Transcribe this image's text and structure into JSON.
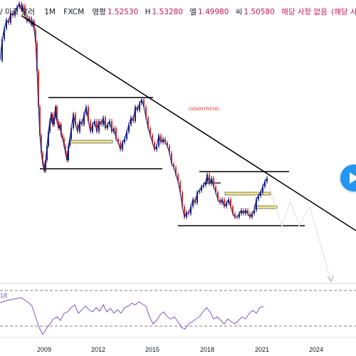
{
  "header": {
    "pair": "/ 미국 달러",
    "interval": "1M",
    "source": "FXCM",
    "open_label": "영평",
    "open": "1.52530",
    "high_label": "H",
    "high": "1.53280",
    "low_label": "엘",
    "low": "1.49980",
    "close_label": "씨",
    "close": "1.50580",
    "na1": "해당 사항 없음",
    "na2": "(해당 사항 없음"
  },
  "annotation": "DOWNTREND",
  "rsi_value": "18",
  "x_axis": [
    "2009",
    "2012",
    "2015",
    "2018",
    "2021",
    "2024"
  ],
  "colors": {
    "up": "#1a237e",
    "down": "#d32f2f",
    "rsi": "#7e57c2",
    "trend": "#000000",
    "zone": "#f0e68c"
  },
  "price_path": [
    [
      0,
      85
    ],
    [
      3,
      55
    ],
    [
      6,
      40
    ],
    [
      9,
      28
    ],
    [
      12,
      32
    ],
    [
      15,
      18
    ],
    [
      18,
      22
    ],
    [
      21,
      15
    ],
    [
      24,
      10
    ],
    [
      27,
      5
    ],
    [
      30,
      14
    ],
    [
      32,
      8
    ],
    [
      35,
      22
    ],
    [
      38,
      30
    ],
    [
      41,
      25
    ],
    [
      44,
      35
    ],
    [
      46,
      30
    ],
    [
      48,
      42
    ],
    [
      50,
      60
    ],
    [
      52,
      100
    ],
    [
      54,
      150
    ],
    [
      56,
      190
    ],
    [
      58,
      215
    ],
    [
      60,
      230
    ],
    [
      62,
      240
    ],
    [
      64,
      225
    ],
    [
      66,
      205
    ],
    [
      68,
      185
    ],
    [
      70,
      170
    ],
    [
      72,
      160
    ],
    [
      74,
      175
    ],
    [
      76,
      165
    ],
    [
      78,
      150
    ],
    [
      80,
      170
    ],
    [
      82,
      180
    ],
    [
      84,
      175
    ],
    [
      86,
      190
    ],
    [
      88,
      195
    ],
    [
      90,
      205
    ],
    [
      92,
      215
    ],
    [
      94,
      225
    ],
    [
      96,
      205
    ],
    [
      98,
      195
    ],
    [
      100,
      180
    ],
    [
      103,
      160
    ],
    [
      106,
      175
    ],
    [
      109,
      185
    ],
    [
      112,
      170
    ],
    [
      115,
      175
    ],
    [
      118,
      160
    ],
    [
      121,
      150
    ],
    [
      124,
      170
    ],
    [
      127,
      185
    ],
    [
      130,
      175
    ],
    [
      133,
      170
    ],
    [
      136,
      185
    ],
    [
      139,
      170
    ],
    [
      142,
      175
    ],
    [
      145,
      165
    ],
    [
      148,
      180
    ],
    [
      151,
      175
    ],
    [
      154,
      170
    ],
    [
      157,
      185
    ],
    [
      160,
      180
    ],
    [
      163,
      195
    ],
    [
      166,
      200
    ],
    [
      169,
      210
    ],
    [
      172,
      200
    ],
    [
      175,
      195
    ],
    [
      178,
      185
    ],
    [
      181,
      175
    ],
    [
      184,
      165
    ],
    [
      187,
      170
    ],
    [
      190,
      150
    ],
    [
      193,
      155
    ],
    [
      196,
      145
    ],
    [
      199,
      140
    ],
    [
      202,
      150
    ],
    [
      205,
      165
    ],
    [
      208,
      180
    ],
    [
      211,
      190
    ],
    [
      214,
      200
    ],
    [
      217,
      210
    ],
    [
      220,
      205
    ],
    [
      223,
      190
    ],
    [
      226,
      200
    ],
    [
      229,
      195
    ],
    [
      232,
      200
    ],
    [
      235,
      205
    ],
    [
      238,
      215
    ],
    [
      241,
      230
    ],
    [
      244,
      235
    ],
    [
      247,
      245
    ],
    [
      250,
      255
    ],
    [
      253,
      270
    ],
    [
      256,
      290
    ],
    [
      259,
      305
    ],
    [
      262,
      298
    ],
    [
      265,
      300
    ],
    [
      268,
      290
    ],
    [
      271,
      280
    ],
    [
      274,
      285
    ],
    [
      277,
      270
    ],
    [
      280,
      268
    ],
    [
      283,
      262
    ],
    [
      286,
      260
    ],
    [
      289,
      255
    ],
    [
      291,
      245
    ],
    [
      294,
      258
    ],
    [
      297,
      250
    ],
    [
      300,
      262
    ],
    [
      303,
      270
    ],
    [
      306,
      280
    ],
    [
      309,
      285
    ],
    [
      312,
      280
    ],
    [
      315,
      290
    ],
    [
      318,
      285
    ],
    [
      321,
      280
    ],
    [
      324,
      290
    ],
    [
      327,
      300
    ],
    [
      330,
      305
    ],
    [
      333,
      305
    ],
    [
      336,
      300
    ],
    [
      339,
      295
    ],
    [
      342,
      300
    ],
    [
      345,
      295
    ],
    [
      348,
      300
    ],
    [
      351,
      305
    ],
    [
      354,
      300
    ],
    [
      357,
      295
    ],
    [
      360,
      280
    ],
    [
      363,
      275
    ],
    [
      366,
      270
    ],
    [
      369,
      262
    ],
    [
      372,
      255
    ],
    [
      375,
      250
    ]
  ],
  "rsi_path": [
    [
      0,
      425
    ],
    [
      10,
      422
    ],
    [
      20,
      420
    ],
    [
      30,
      418
    ],
    [
      40,
      425
    ],
    [
      45,
      430
    ],
    [
      50,
      445
    ],
    [
      55,
      460
    ],
    [
      60,
      470
    ],
    [
      65,
      462
    ],
    [
      70,
      455
    ],
    [
      75,
      448
    ],
    [
      80,
      445
    ],
    [
      85,
      450
    ],
    [
      90,
      440
    ],
    [
      95,
      438
    ],
    [
      100,
      432
    ],
    [
      105,
      428
    ],
    [
      110,
      440
    ],
    [
      115,
      435
    ],
    [
      120,
      430
    ],
    [
      125,
      435
    ],
    [
      130,
      438
    ],
    [
      135,
      432
    ],
    [
      140,
      437
    ],
    [
      145,
      428
    ],
    [
      150,
      438
    ],
    [
      155,
      433
    ],
    [
      160,
      440
    ],
    [
      165,
      435
    ],
    [
      170,
      440
    ],
    [
      175,
      432
    ],
    [
      180,
      430
    ],
    [
      185,
      426
    ],
    [
      190,
      428
    ],
    [
      195,
      424
    ],
    [
      200,
      427
    ],
    [
      205,
      430
    ],
    [
      210,
      445
    ],
    [
      215,
      455
    ],
    [
      220,
      450
    ],
    [
      225,
      442
    ],
    [
      230,
      438
    ],
    [
      235,
      445
    ],
    [
      240,
      448
    ],
    [
      245,
      445
    ],
    [
      250,
      452
    ],
    [
      255,
      460
    ],
    [
      260,
      462
    ],
    [
      265,
      455
    ],
    [
      270,
      452
    ],
    [
      275,
      448
    ],
    [
      280,
      445
    ],
    [
      285,
      438
    ],
    [
      290,
      432
    ],
    [
      295,
      438
    ],
    [
      300,
      448
    ],
    [
      305,
      445
    ],
    [
      310,
      450
    ],
    [
      315,
      455
    ],
    [
      320,
      448
    ],
    [
      325,
      452
    ],
    [
      330,
      455
    ],
    [
      335,
      450
    ],
    [
      340,
      445
    ],
    [
      345,
      448
    ],
    [
      350,
      440
    ],
    [
      355,
      436
    ],
    [
      360,
      440
    ],
    [
      365,
      432
    ],
    [
      370,
      430
    ]
  ]
}
